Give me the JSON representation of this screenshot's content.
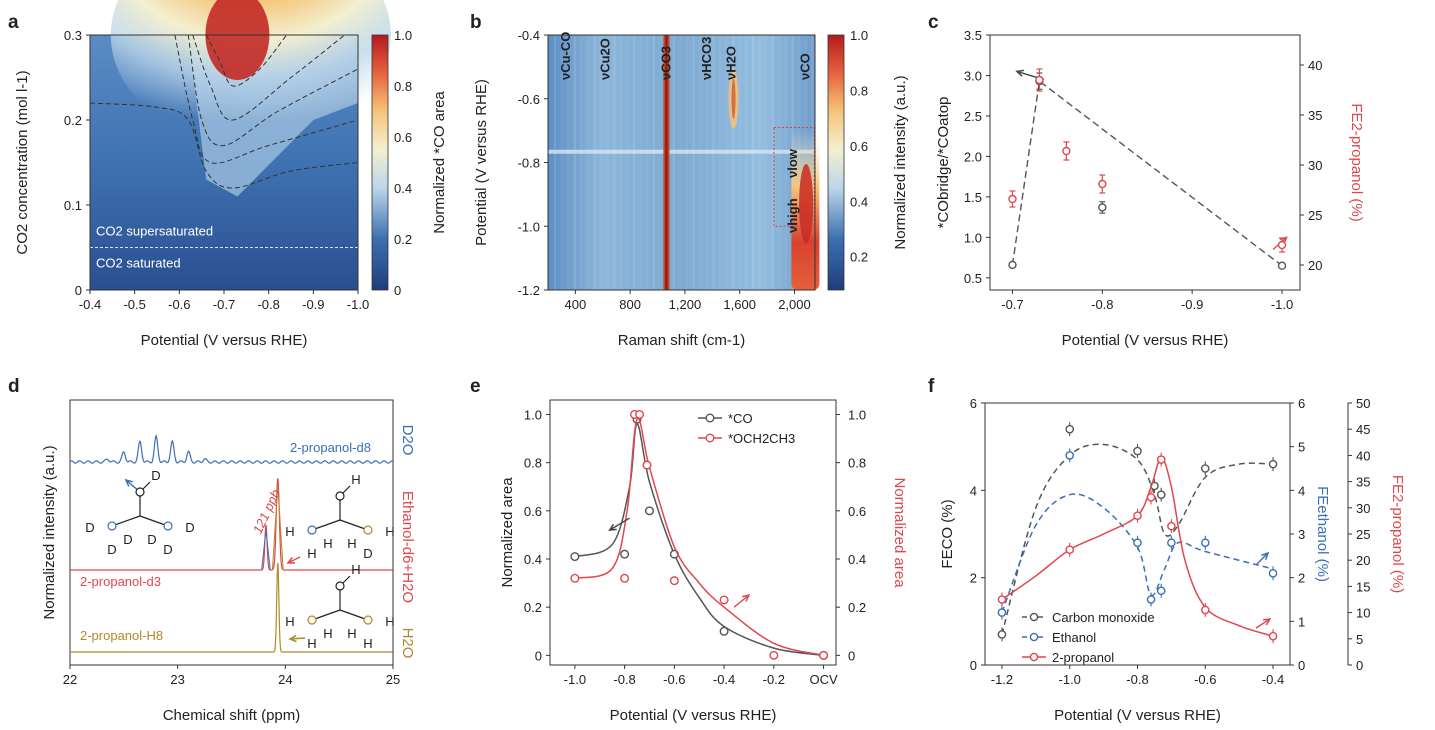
{
  "panels": {
    "a": {
      "label": "a"
    },
    "b": {
      "label": "b"
    },
    "c": {
      "label": "c"
    },
    "d": {
      "label": "d"
    },
    "e": {
      "label": "e"
    },
    "f": {
      "label": "f"
    }
  },
  "chart_data": [
    {
      "panel": "a",
      "type": "heatmap",
      "xlabel": "Potential (V versus RHE)",
      "ylabel": "CO2 concentration (mol l-1)",
      "colorbar_label": "Normalized *CO area",
      "x_ticks": [
        "-0.4",
        "-0.5",
        "-0.6",
        "-0.7",
        "-0.8",
        "-0.9",
        "-1.0"
      ],
      "y_ticks": [
        "0",
        "0.1",
        "0.2",
        "0.3"
      ],
      "colorbar_ticks": [
        "0",
        "0.2",
        "0.4",
        "0.6",
        "0.8",
        "1.0"
      ],
      "xlim": [
        -0.4,
        -1.0
      ],
      "ylim": [
        0,
        0.3
      ],
      "hotspot": {
        "x": -0.72,
        "y": 0.3,
        "value": 1.0
      },
      "annotations": {
        "supersaturated": "CO2 supersaturated",
        "saturated": "CO2 saturated",
        "boundary_y": 0.05
      }
    },
    {
      "panel": "b",
      "type": "heatmap",
      "xlabel": "Raman shift (cm-1)",
      "ylabel": "Potential (V versus RHE)",
      "colorbar_label": "Normalized intensity (a.u.)",
      "x_ticks": [
        "400",
        "800",
        "1,200",
        "1,600",
        "2,000"
      ],
      "y_ticks": [
        "-0.4",
        "-0.6",
        "-0.8",
        "-1.0",
        "-1.2"
      ],
      "colorbar_ticks": [
        "0.2",
        "0.4",
        "0.6",
        "0.8",
        "1.0"
      ],
      "xlim": [
        200,
        2150
      ],
      "ylim": [
        -0.4,
        -1.2
      ],
      "band_labels": [
        "νCu-CO",
        "νCu2O",
        "νCO3",
        "νHCO3",
        "νH2O",
        "νCO"
      ],
      "band_positions": [
        330,
        620,
        1065,
        1360,
        1540,
        2080
      ],
      "inset_labels": [
        "νlow",
        "νhigh"
      ]
    },
    {
      "panel": "c",
      "type": "scatter",
      "xlabel": "Potential (V versus RHE)",
      "ylabel_left": "*CObridge/*COatop",
      "ylabel_right": "FE2-propanol (%)",
      "x_ticks": [
        "-0.7",
        "-0.8",
        "-0.9",
        "-1.0"
      ],
      "y_left_ticks": [
        "0.5",
        "1.0",
        "1.5",
        "2.0",
        "2.5",
        "3.0",
        "3.5"
      ],
      "y_right_ticks": [
        "20",
        "25",
        "30",
        "35",
        "40"
      ],
      "xlim": [
        -0.675,
        -1.02
      ],
      "ylim_left": [
        0.35,
        3.5
      ],
      "ylim_right": [
        17.5,
        43
      ],
      "series": [
        {
          "name": "ratio",
          "axis": "left",
          "color": "#555555",
          "x": [
            -0.7,
            -0.73,
            -0.8,
            -1.0
          ],
          "y": [
            0.66,
            2.93,
            1.37,
            0.65
          ],
          "err": [
            0.03,
            0.1,
            0.07,
            0.02
          ]
        },
        {
          "name": "FE2-propanol",
          "axis": "right",
          "color": "#e0474c",
          "x": [
            -0.7,
            -0.73,
            -0.76,
            -0.8,
            -1.0
          ],
          "y": [
            26.6,
            38.5,
            31.4,
            28.1,
            22.0
          ],
          "err": [
            0.8,
            1.1,
            0.9,
            0.9,
            0.7
          ]
        }
      ]
    },
    {
      "panel": "d",
      "type": "line",
      "xlabel": "Chemical shift (ppm)",
      "ylabel": "Normalized intensity (a.u.)",
      "x_ticks": [
        "22",
        "23",
        "24",
        "25"
      ],
      "xlim": [
        22,
        25
      ],
      "traces": [
        {
          "name": "2-propanol-d8",
          "color": "#3a6fb5",
          "solvent": "D2O"
        },
        {
          "name": "2-propanol-d3",
          "color": "#e0474c",
          "solvent": "Ethanol-d6+H2O"
        },
        {
          "name": "2-propanol-H8",
          "color": "#b08a2a",
          "solvent": "H2O"
        }
      ],
      "annotation": "121 ppb",
      "atom_labels": {
        "D": "D",
        "H": "H",
        "C": "C",
        "O": "O"
      }
    },
    {
      "panel": "e",
      "type": "line",
      "xlabel": "Potential (V versus RHE)",
      "ylabel_left": "Normalized area",
      "ylabel_right": "Normalized area",
      "x_ticks": [
        "-1.0",
        "-0.8",
        "-0.6",
        "-0.4",
        "-0.2",
        "OCV"
      ],
      "y_ticks": [
        "0",
        "0.2",
        "0.4",
        "0.6",
        "0.8",
        "1.0"
      ],
      "ylim": [
        0,
        1.0
      ],
      "series": [
        {
          "name": "*CO",
          "color": "#555555",
          "x": [
            -1.0,
            -0.8,
            -0.75,
            -0.7,
            -0.6,
            -0.4,
            0.0
          ],
          "y": [
            0.41,
            0.42,
            0.98,
            0.6,
            0.42,
            0.1,
            0.0
          ]
        },
        {
          "name": "*OCH2CH3",
          "color": "#e0474c",
          "x": [
            -1.0,
            -0.8,
            -0.76,
            -0.74,
            -0.71,
            -0.6,
            -0.4,
            -0.2,
            0.0
          ],
          "y": [
            0.32,
            0.32,
            1.0,
            1.0,
            0.79,
            0.31,
            0.23,
            0.0,
            0.0
          ]
        }
      ]
    },
    {
      "panel": "f",
      "type": "line",
      "xlabel": "Potential (V versus RHE)",
      "ylabel_1": "FECO (%)",
      "ylabel_2": "FEethanol (%)",
      "ylabel_3": "FE2-propanol (%)",
      "x_ticks": [
        "-1.2",
        "-1.0",
        "-0.8",
        "-0.6",
        "-0.4"
      ],
      "y1_ticks": [
        "0",
        "2",
        "4",
        "6"
      ],
      "y2_ticks": [
        "0",
        "1",
        "2",
        "3",
        "4",
        "5",
        "6"
      ],
      "y3_ticks": [
        "0",
        "5",
        "10",
        "15",
        "20",
        "25",
        "30",
        "35",
        "40",
        "45",
        "50"
      ],
      "series": [
        {
          "name": "Carbon monoxide",
          "axis": "FECO",
          "color": "#555555",
          "x": [
            -1.2,
            -1.0,
            -0.8,
            -0.75,
            -0.73,
            -0.6,
            -0.4
          ],
          "y": [
            0.7,
            5.4,
            4.9,
            4.1,
            3.9,
            4.5,
            4.6
          ]
        },
        {
          "name": "Ethanol",
          "axis": "FEethanol",
          "color": "#3a6fb5",
          "x": [
            -1.2,
            -1.0,
            -0.8,
            -0.76,
            -0.73,
            -0.7,
            -0.6,
            -0.4
          ],
          "y": [
            1.2,
            4.8,
            2.8,
            1.5,
            1.7,
            2.8,
            2.8,
            2.1
          ]
        },
        {
          "name": "2-propanol",
          "axis": "FE2-propanol",
          "color": "#e0474c",
          "x": [
            -1.2,
            -1.0,
            -0.8,
            -0.76,
            -0.73,
            -0.7,
            -0.6,
            -0.4
          ],
          "y": [
            12.5,
            22.0,
            28.5,
            32.0,
            39.2,
            26.5,
            10.5,
            5.5
          ]
        }
      ]
    }
  ]
}
